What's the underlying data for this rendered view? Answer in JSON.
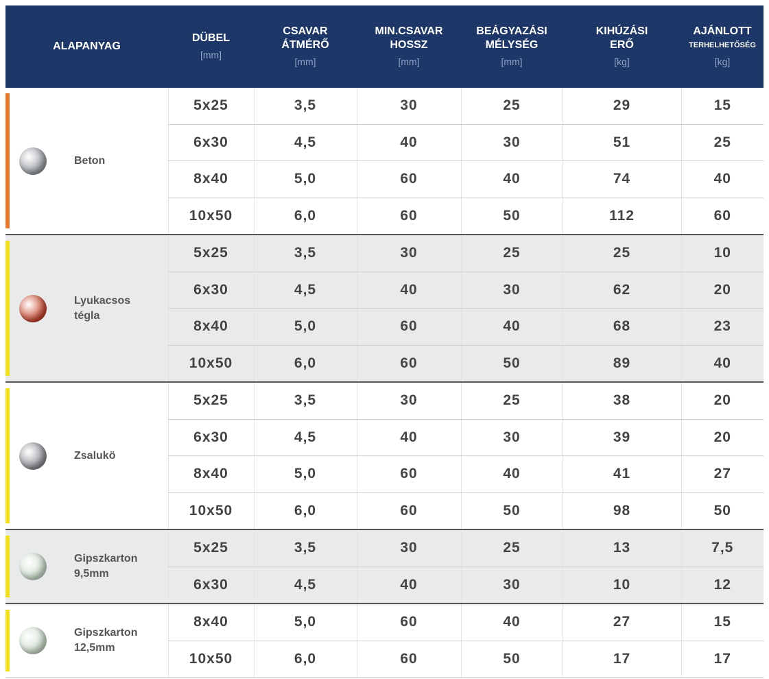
{
  "header": {
    "columns": [
      {
        "lines": [
          "ALAPANYAG"
        ]
      },
      {
        "lines": [
          "DÜBEL"
        ],
        "unit": "[mm]"
      },
      {
        "lines": [
          "CSAVAR",
          "ÁTMÉRŐ"
        ],
        "unit": "[mm]"
      },
      {
        "lines": [
          "MIN.CSAVAR",
          "HOSSZ"
        ],
        "unit": "[mm]"
      },
      {
        "lines": [
          "BEÁGYAZÁSI",
          "MÉLYSÉG"
        ],
        "unit": "[mm]"
      },
      {
        "lines": [
          "KIHÚZÁSI",
          "ERŐ"
        ],
        "unit": "[kg]"
      },
      {
        "lines": [
          "AJÁNLOTT",
          "TERHELHETŐSÉG"
        ],
        "unit": "[kg]"
      }
    ]
  },
  "groups": [
    {
      "material": [
        "Beton"
      ],
      "accent": "#e8792c",
      "icon": "#9a9ea4",
      "shaded": false,
      "rows": [
        [
          "5x25",
          "3,5",
          "30",
          "25",
          "29",
          "15"
        ],
        [
          "6x30",
          "4,5",
          "40",
          "30",
          "51",
          "25"
        ],
        [
          "8x40",
          "5,0",
          "60",
          "40",
          "74",
          "40"
        ],
        [
          "10x50",
          "6,0",
          "60",
          "50",
          "112",
          "60"
        ]
      ]
    },
    {
      "material": [
        "Lyukacsos",
        "tégla"
      ],
      "accent": "#f2e01b",
      "icon": "#c9442a",
      "shaded": true,
      "rows": [
        [
          "5x25",
          "3,5",
          "30",
          "25",
          "25",
          "10"
        ],
        [
          "6x30",
          "4,5",
          "40",
          "30",
          "62",
          "20"
        ],
        [
          "8x40",
          "5,0",
          "60",
          "40",
          "68",
          "23"
        ],
        [
          "10x50",
          "6,0",
          "60",
          "50",
          "89",
          "40"
        ]
      ]
    },
    {
      "material": [
        "Zsalukö"
      ],
      "accent": "#f2e01b",
      "icon": "#8d9096",
      "shaded": false,
      "rows": [
        [
          "5x25",
          "3,5",
          "30",
          "25",
          "38",
          "20"
        ],
        [
          "6x30",
          "4,5",
          "40",
          "30",
          "39",
          "20"
        ],
        [
          "8x40",
          "5,0",
          "60",
          "40",
          "41",
          "27"
        ],
        [
          "10x50",
          "6,0",
          "60",
          "50",
          "98",
          "50"
        ]
      ]
    },
    {
      "material": [
        "Gipszkarton",
        "9,5mm"
      ],
      "accent": "#f2e01b",
      "icon": "#cfe0cf",
      "shaded": true,
      "rows": [
        [
          "5x25",
          "3,5",
          "30",
          "25",
          "13",
          "7,5"
        ],
        [
          "6x30",
          "4,5",
          "40",
          "30",
          "10",
          "12"
        ]
      ]
    },
    {
      "material": [
        "Gipszkarton",
        "12,5mm"
      ],
      "accent": "#f2e01b",
      "icon": "#cfe0cf",
      "shaded": false,
      "rows": [
        [
          "8x40",
          "5,0",
          "60",
          "40",
          "27",
          "15"
        ],
        [
          "10x50",
          "6,0",
          "60",
          "50",
          "17",
          "17"
        ]
      ]
    }
  ]
}
